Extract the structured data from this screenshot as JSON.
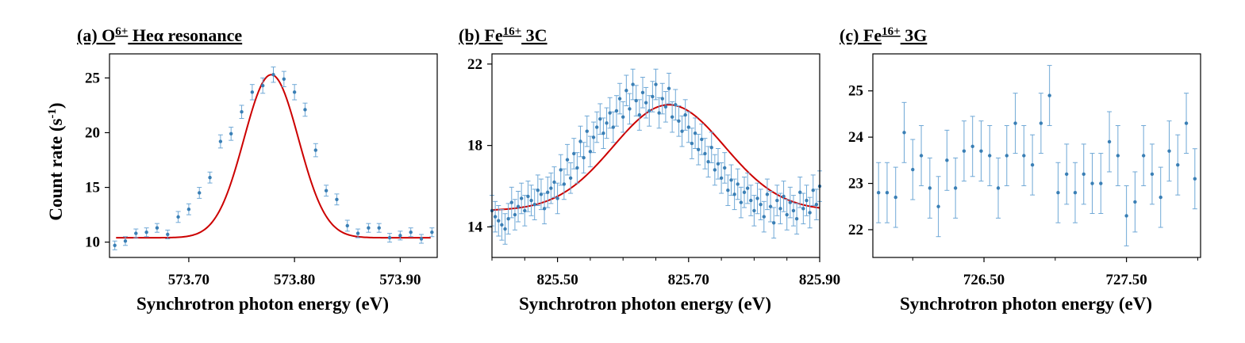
{
  "figure": {
    "ylabel": "Count rate (s",
    "ylabel_sup": "-1",
    "ylabel_end": ")",
    "colors": {
      "points": "#3a7fb5",
      "errorbars": "#6fa8d6",
      "fit": "#cc0000",
      "axes": "#000000"
    }
  },
  "chart_data": [
    {
      "type": "scatter",
      "title_prefix": "(a) O",
      "title_sup": "6+",
      "title_suffix": " Heα resonance",
      "xlabel": "Synchrotron photon energy (eV)",
      "xlim": [
        573.625,
        573.935
      ],
      "ylim": [
        8.6,
        27.2
      ],
      "xticks": [
        573.7,
        573.8,
        573.9
      ],
      "xtick_labels": [
        "573.70",
        "573.80",
        "573.90"
      ],
      "yticks": [
        10,
        15,
        20,
        25
      ],
      "ytick_labels": [
        "10",
        "15",
        "20",
        "25"
      ],
      "x": [
        573.63,
        573.64,
        573.65,
        573.66,
        573.67,
        573.68,
        573.69,
        573.7,
        573.71,
        573.72,
        573.73,
        573.74,
        573.75,
        573.76,
        573.77,
        573.78,
        573.79,
        573.8,
        573.81,
        573.82,
        573.83,
        573.84,
        573.85,
        573.86,
        573.87,
        573.88,
        573.89,
        573.9,
        573.91,
        573.92,
        573.93
      ],
      "y": [
        9.7,
        10.1,
        10.8,
        10.9,
        11.3,
        10.7,
        12.3,
        13.0,
        14.5,
        15.9,
        19.2,
        19.9,
        21.9,
        23.7,
        24.3,
        25.3,
        24.9,
        23.7,
        22.1,
        18.4,
        14.7,
        13.9,
        11.5,
        10.8,
        11.3,
        11.3,
        10.4,
        10.6,
        10.9,
        10.3,
        10.9
      ],
      "yerr": [
        0.4,
        0.4,
        0.4,
        0.4,
        0.4,
        0.4,
        0.5,
        0.5,
        0.5,
        0.5,
        0.6,
        0.6,
        0.6,
        0.7,
        0.7,
        0.7,
        0.7,
        0.7,
        0.6,
        0.6,
        0.5,
        0.5,
        0.5,
        0.4,
        0.4,
        0.4,
        0.4,
        0.4,
        0.4,
        0.4,
        0.4
      ],
      "fit": {
        "model": "gaussian",
        "baseline": 10.4,
        "amplitude": 14.9,
        "center": 573.778,
        "sigma": 0.0258
      }
    },
    {
      "type": "scatter",
      "title_prefix": "(b) Fe",
      "title_sup": "16+",
      "title_suffix": " 3C",
      "xlabel": "Synchrotron photon energy (eV)",
      "xlim": [
        825.4,
        825.9
      ],
      "ylim": [
        12.5,
        22.5
      ],
      "xticks": [
        825.5,
        825.7,
        825.9
      ],
      "xtick_labels": [
        "825.50",
        "825.70",
        "825.90"
      ],
      "minor_xticks": [
        825.4,
        825.45,
        825.55,
        825.6,
        825.65,
        825.75,
        825.8,
        825.85
      ],
      "yticks": [
        14,
        18,
        22
      ],
      "ytick_labels": [
        "14",
        "18",
        "22"
      ],
      "x": [
        825.4,
        825.405,
        825.41,
        825.415,
        825.42,
        825.425,
        825.43,
        825.435,
        825.44,
        825.445,
        825.45,
        825.455,
        825.46,
        825.465,
        825.47,
        825.475,
        825.48,
        825.485,
        825.49,
        825.495,
        825.5,
        825.505,
        825.51,
        825.515,
        825.52,
        825.525,
        825.53,
        825.535,
        825.54,
        825.545,
        825.55,
        825.555,
        825.56,
        825.565,
        825.57,
        825.575,
        825.58,
        825.585,
        825.59,
        825.595,
        825.6,
        825.605,
        825.61,
        825.615,
        825.62,
        825.625,
        825.63,
        825.635,
        825.64,
        825.645,
        825.65,
        825.655,
        825.66,
        825.665,
        825.67,
        825.675,
        825.68,
        825.685,
        825.69,
        825.695,
        825.7,
        825.705,
        825.71,
        825.715,
        825.72,
        825.725,
        825.73,
        825.735,
        825.74,
        825.745,
        825.75,
        825.755,
        825.76,
        825.765,
        825.77,
        825.775,
        825.78,
        825.785,
        825.79,
        825.795,
        825.8,
        825.805,
        825.81,
        825.815,
        825.82,
        825.825,
        825.83,
        825.835,
        825.84,
        825.845,
        825.85,
        825.855,
        825.86,
        825.865,
        825.87,
        825.875,
        825.88,
        825.885,
        825.89,
        825.895,
        825.9
      ],
      "y": [
        14.8,
        14.5,
        14.3,
        14.1,
        13.9,
        14.4,
        15.2,
        14.6,
        15.0,
        15.4,
        14.8,
        15.5,
        15.3,
        15.1,
        15.8,
        15.6,
        14.9,
        15.7,
        15.9,
        16.2,
        15.4,
        16.8,
        16.1,
        17.3,
        16.4,
        17.6,
        16.9,
        18.2,
        17.4,
        18.7,
        17.7,
        18.4,
        18.9,
        19.3,
        18.6,
        19.1,
        19.6,
        18.9,
        19.7,
        20.3,
        19.4,
        20.7,
        19.8,
        21.0,
        20.2,
        19.5,
        20.6,
        20.1,
        19.7,
        20.4,
        21.0,
        19.6,
        20.3,
        19.9,
        20.8,
        19.4,
        20.0,
        19.2,
        18.7,
        19.5,
        18.9,
        18.1,
        18.6,
        17.8,
        18.3,
        17.6,
        17.2,
        17.9,
        16.8,
        17.1,
        16.4,
        16.9,
        15.8,
        16.3,
        15.6,
        16.1,
        15.2,
        15.7,
        15.9,
        15.3,
        14.8,
        15.4,
        15.1,
        14.5,
        15.6,
        15.0,
        14.2,
        15.3,
        14.9,
        15.5,
        14.6,
        15.2,
        14.8,
        14.4,
        15.7,
        14.9,
        15.3,
        14.7,
        15.8,
        15.1,
        16.0
      ],
      "yerr": [
        0.75,
        0.75,
        0.75,
        0.75,
        0.75,
        0.75,
        0.75,
        0.75,
        0.75,
        0.75,
        0.75,
        0.75,
        0.75,
        0.75,
        0.75,
        0.75,
        0.75,
        0.75,
        0.75,
        0.75,
        0.75,
        0.75,
        0.75,
        0.75,
        0.75,
        0.75,
        0.75,
        0.75,
        0.75,
        0.75,
        0.75,
        0.75,
        0.75,
        0.75,
        0.75,
        0.75,
        0.75,
        0.75,
        0.75,
        0.75,
        0.75,
        0.75,
        0.75,
        0.75,
        0.75,
        0.75,
        0.75,
        0.75,
        0.75,
        0.75,
        0.75,
        0.75,
        0.75,
        0.75,
        0.75,
        0.75,
        0.75,
        0.75,
        0.75,
        0.75,
        0.75,
        0.75,
        0.75,
        0.75,
        0.75,
        0.75,
        0.75,
        0.75,
        0.75,
        0.75,
        0.75,
        0.75,
        0.75,
        0.75,
        0.75,
        0.75,
        0.75,
        0.75,
        0.75,
        0.75,
        0.75,
        0.75,
        0.75,
        0.75,
        0.75,
        0.75,
        0.75,
        0.75,
        0.75,
        0.75,
        0.75,
        0.75,
        0.75,
        0.75,
        0.75,
        0.75,
        0.75,
        0.75,
        0.75,
        0.75,
        0.75
      ],
      "fit": {
        "model": "gaussian",
        "baseline": 14.8,
        "amplitude": 5.2,
        "center": 825.67,
        "sigma": 0.085
      }
    },
    {
      "type": "scatter",
      "title_prefix": "(c) Fe",
      "title_sup": "16+",
      "title_suffix": " 3G",
      "xlabel": "Synchrotron photon energy (eV)",
      "xlim": [
        725.72,
        728.02
      ],
      "ylim": [
        21.4,
        25.8
      ],
      "xticks": [
        726.5,
        727.5
      ],
      "xtick_labels": [
        "726.50",
        "727.50"
      ],
      "minor_xticks": [
        726.0,
        727.0,
        728.0
      ],
      "yticks": [
        22,
        23,
        24,
        25
      ],
      "ytick_labels": [
        "22",
        "23",
        "24",
        "25"
      ],
      "x": [
        725.76,
        725.82,
        725.88,
        725.94,
        726.0,
        726.06,
        726.12,
        726.18,
        726.24,
        726.3,
        726.36,
        726.42,
        726.48,
        726.54,
        726.6,
        726.66,
        726.72,
        726.78,
        726.84,
        726.9,
        726.96,
        727.02,
        727.08,
        727.14,
        727.2,
        727.26,
        727.32,
        727.38,
        727.44,
        727.5,
        727.56,
        727.62,
        727.68,
        727.74,
        727.8,
        727.86,
        727.92,
        727.98
      ],
      "y": [
        22.8,
        22.8,
        22.7,
        24.1,
        23.3,
        23.6,
        22.9,
        22.5,
        23.5,
        22.9,
        23.7,
        23.8,
        23.7,
        23.6,
        22.9,
        23.6,
        24.3,
        23.6,
        23.4,
        24.3,
        24.9,
        22.8,
        23.2,
        22.8,
        23.2,
        23.0,
        23.0,
        23.9,
        23.6,
        22.3,
        22.6,
        23.6,
        23.2,
        22.7,
        23.7,
        23.4,
        24.3,
        23.1
      ],
      "yerr": [
        0.65,
        0.65,
        0.65,
        0.65,
        0.65,
        0.65,
        0.65,
        0.65,
        0.65,
        0.65,
        0.65,
        0.65,
        0.65,
        0.65,
        0.65,
        0.65,
        0.65,
        0.65,
        0.65,
        0.65,
        0.65,
        0.65,
        0.65,
        0.65,
        0.65,
        0.65,
        0.65,
        0.65,
        0.65,
        0.65,
        0.65,
        0.65,
        0.65,
        0.65,
        0.65,
        0.65,
        0.65,
        0.65
      ]
    }
  ]
}
